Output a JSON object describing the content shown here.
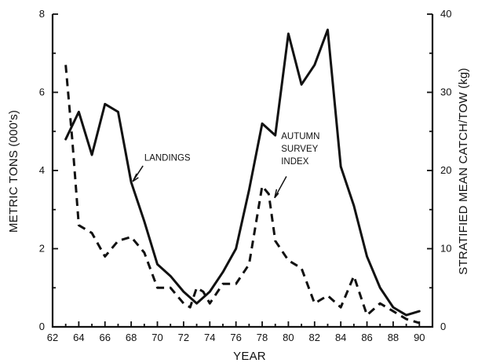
{
  "chart_data": {
    "type": "line",
    "title": "",
    "xlabel": "YEAR",
    "ylabel_left": "METRIC TONS (000's)",
    "ylabel_right": "STRATIFIED MEAN CATCH/TOW (kg)",
    "x_ticks": [
      "62",
      "64",
      "66",
      "68",
      "70",
      "72",
      "74",
      "76",
      "78",
      "80",
      "82",
      "84",
      "86",
      "88",
      "90"
    ],
    "left_y_ticks": [
      "0",
      "2",
      "4",
      "6",
      "8"
    ],
    "right_y_ticks": [
      "0",
      "10",
      "20",
      "30",
      "40"
    ],
    "xlim": [
      62,
      91
    ],
    "ylim_left": [
      0,
      8
    ],
    "ylim_right": [
      0,
      40
    ],
    "grid": false,
    "annotations": {
      "landings": "LANDINGS",
      "survey_line_1": "AUTUMN",
      "survey_line_2": "SURVEY",
      "survey_line_3": "INDEX"
    },
    "series": [
      {
        "id": "landings",
        "axis": "left",
        "style": "solid",
        "x": [
          63,
          64,
          65,
          66,
          67,
          68,
          69,
          70,
          71,
          72,
          73,
          74,
          75,
          76,
          77,
          78,
          79,
          80,
          81,
          82,
          83,
          84,
          85,
          86,
          87,
          88,
          89,
          90
        ],
        "values": [
          4.8,
          5.5,
          4.4,
          5.7,
          5.5,
          3.7,
          2.7,
          1.6,
          1.3,
          0.9,
          0.6,
          0.9,
          1.4,
          2.0,
          3.5,
          5.2,
          4.9,
          7.5,
          6.2,
          6.7,
          7.6,
          4.1,
          3.1,
          1.8,
          1.0,
          0.5,
          0.3,
          0.4
        ]
      },
      {
        "id": "autumn-survey-index",
        "axis": "right",
        "style": "dashed",
        "x": [
          63,
          63.5,
          64,
          65,
          66,
          67,
          68,
          69,
          70,
          71,
          72,
          72.5,
          73,
          73.5,
          74,
          75,
          76,
          77,
          78,
          78.5,
          79,
          80,
          81,
          82,
          83,
          84,
          85,
          86,
          87,
          88,
          89,
          90
        ],
        "values": [
          33.5,
          24,
          13,
          12,
          9,
          11,
          11.5,
          9.5,
          5,
          5,
          3,
          2.5,
          5,
          4.5,
          3,
          5.5,
          5.5,
          8,
          18,
          17,
          11,
          8.5,
          7.5,
          3,
          4,
          2.5,
          6.5,
          1.5,
          3,
          2,
          1,
          0.5
        ]
      }
    ]
  }
}
